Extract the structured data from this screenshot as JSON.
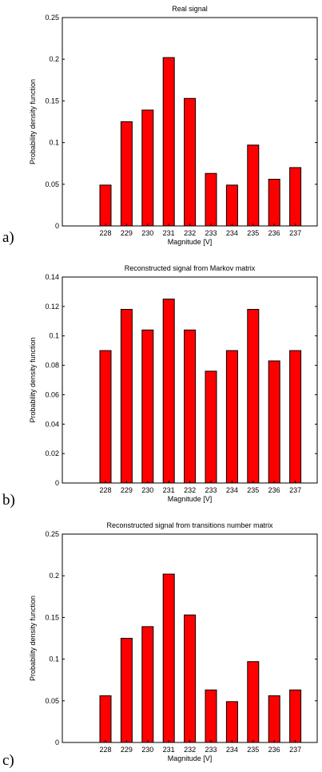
{
  "figure": {
    "letters": [
      "a)",
      "b)",
      "c)"
    ]
  },
  "chart_data": [
    {
      "type": "bar",
      "title": "Real signal",
      "xlabel": "Magnitude [V]",
      "ylabel": "Probability density function",
      "categories": [
        "228",
        "229",
        "230",
        "231",
        "232",
        "233",
        "234",
        "235",
        "236",
        "237"
      ],
      "values": [
        0.049,
        0.125,
        0.139,
        0.202,
        0.153,
        0.063,
        0.049,
        0.097,
        0.056,
        0.07
      ],
      "ylim": [
        0,
        0.25
      ],
      "yticks": [
        "0",
        "0.05",
        "0.1",
        "0.15",
        "0.2",
        "0.25"
      ],
      "bar_color": "#ff0000",
      "grid": false
    },
    {
      "type": "bar",
      "title": "Reconstructed signal from Markov matrix",
      "xlabel": "Magnitude [V]",
      "ylabel": "Probability density function",
      "categories": [
        "228",
        "229",
        "230",
        "231",
        "232",
        "233",
        "234",
        "235",
        "236",
        "237"
      ],
      "values": [
        0.09,
        0.118,
        0.104,
        0.125,
        0.104,
        0.076,
        0.09,
        0.118,
        0.083,
        0.09
      ],
      "ylim": [
        0,
        0.14
      ],
      "yticks": [
        "0",
        "0.02",
        "0.04",
        "0.06",
        "0.08",
        "0.1",
        "0.12",
        "0.14"
      ],
      "bar_color": "#ff0000",
      "grid": false
    },
    {
      "type": "bar",
      "title": "Reconstructed signal from transitions number matrix",
      "xlabel": "Magnitude [V]",
      "ylabel": "Probability density function",
      "categories": [
        "228",
        "229",
        "230",
        "231",
        "232",
        "233",
        "234",
        "235",
        "236",
        "237"
      ],
      "values": [
        0.056,
        0.125,
        0.139,
        0.202,
        0.153,
        0.063,
        0.049,
        0.097,
        0.056,
        0.063
      ],
      "ylim": [
        0,
        0.25
      ],
      "yticks": [
        "0",
        "0.05",
        "0.1",
        "0.15",
        "0.2",
        "0.25"
      ],
      "bar_color": "#ff0000",
      "grid": false
    }
  ]
}
